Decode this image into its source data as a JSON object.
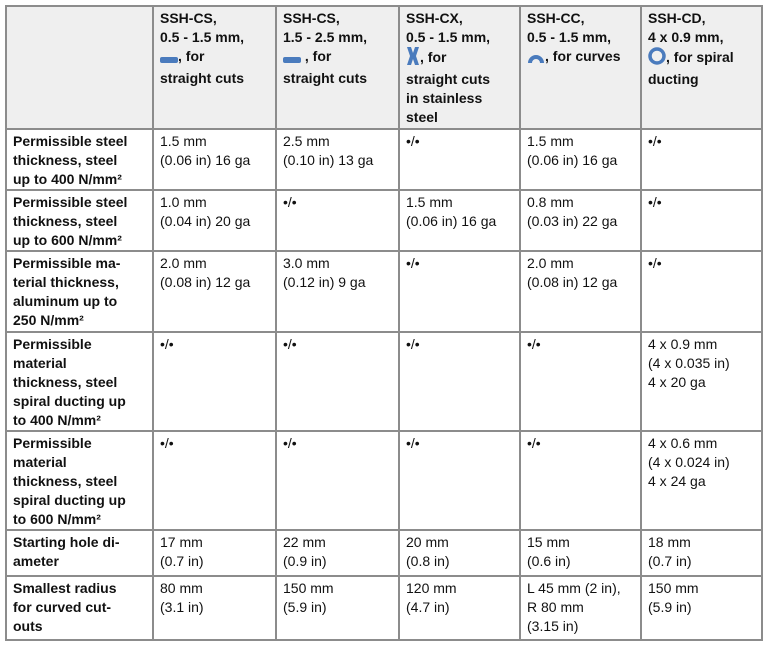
{
  "colors": {
    "icon": "#4a7bbd",
    "header_bg": "#efefef",
    "border": "#8c8c8c"
  },
  "headers": [
    {
      "title": "SSH-CS,\n0.5 - 1.5 mm,",
      "icon": "straight-blade-icon",
      "caption": ", for\nstraight cuts"
    },
    {
      "title": "SSH-CS,\n1.5 - 2.5 mm,",
      "icon": "straight-blade-icon",
      "caption": " , for\nstraight cuts"
    },
    {
      "title": "SSH-CX,\n0.5 - 1.5 mm,",
      "icon": "cross-blade-icon",
      "caption": ", for\nstraight cuts\nin stainless\nsteel"
    },
    {
      "title": "SSH-CC,\n0.5 - 1.5 mm,",
      "icon": "curved-blade-icon",
      "caption": ", for curves"
    },
    {
      "title": "SSH-CD,\n4 x 0.9 mm,",
      "icon": "ring-blade-icon",
      "caption": ", for spiral\nducting"
    }
  ],
  "rows": [
    {
      "label": "Permissible steel\nthickness, steel\nup to 400 N/mm²",
      "cells": [
        "1.5 mm\n(0.06 in) 16 ga",
        "2.5 mm\n(0.10 in) 13 ga",
        "•/•",
        "1.5 mm\n(0.06 in) 16 ga",
        "•/•"
      ]
    },
    {
      "label": "Permissible steel\nthickness, steel\nup to 600 N/mm²",
      "cells": [
        "1.0 mm\n(0.04 in) 20 ga",
        "•/•",
        "1.5 mm\n(0.06 in) 16 ga",
        "0.8 mm\n(0.03 in) 22 ga",
        "•/•"
      ]
    },
    {
      "label": "Permissible ma-\nterial thickness,\naluminum up to\n250 N/mm²",
      "cells": [
        "2.0 mm\n(0.08 in) 12 ga",
        "3.0 mm\n(0.12 in) 9 ga",
        "•/•",
        "2.0 mm\n(0.08 in) 12 ga",
        "•/•"
      ]
    },
    {
      "label": "Permissible\nmaterial\nthickness, steel\nspiral ducting up\nto 400 N/mm²",
      "cells": [
        "•/•",
        "•/•",
        "•/•",
        "•/•",
        "4 x 0.9 mm\n(4 x 0.035 in)\n4 x 20 ga"
      ]
    },
    {
      "label": "Permissible\nmaterial\nthickness, steel\nspiral ducting up\nto 600 N/mm²",
      "cells": [
        "•/•",
        "•/•",
        "•/•",
        "•/•",
        "4 x 0.6 mm\n(4 x 0.024 in)\n4 x 24 ga"
      ]
    },
    {
      "label": "Starting hole di-\nameter",
      "cells": [
        "17 mm\n(0.7 in)",
        "22 mm\n(0.9 in)",
        "20 mm\n(0.8 in)",
        "15 mm\n(0.6 in)",
        "18 mm\n(0.7 in)"
      ]
    },
    {
      "label": "Smallest radius\nfor curved cut-\nouts",
      "cells": [
        "80 mm\n(3.1 in)",
        "150 mm\n(5.9 in)",
        "120 mm\n(4.7 in)",
        "L 45 mm (2 in),\nR 80 mm\n(3.15 in)",
        "150 mm\n(5.9 in)"
      ]
    }
  ]
}
